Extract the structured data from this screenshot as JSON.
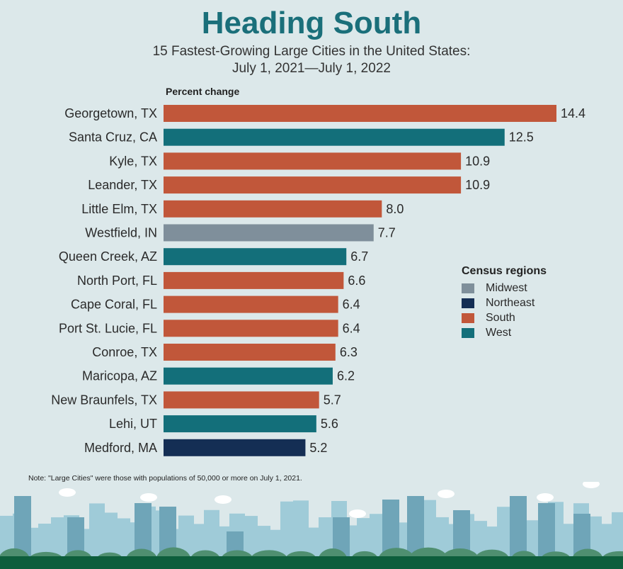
{
  "title": "Heading South",
  "subtitle_line1": "15 Fastest-Growing Large Cities in the United States:",
  "subtitle_line2": "July 1, 2021—July 1, 2022",
  "note": "Note: \"Large Cities\" were those with populations of 50,000 or more on July 1, 2021.",
  "colors": {
    "Midwest": "#7f8f9b",
    "Northeast": "#142e54",
    "South": "#c1573a",
    "West": "#136f7a"
  },
  "legend": {
    "title": "Census regions",
    "items": [
      "Midwest",
      "Northeast",
      "South",
      "West"
    ]
  },
  "chart_data": {
    "type": "bar",
    "orientation": "horizontal",
    "xlabel": "Percent change",
    "categories": [
      "Georgetown, TX",
      "Santa Cruz, CA",
      "Kyle, TX",
      "Leander, TX",
      "Little Elm, TX",
      "Westfield, IN",
      "Queen Creek, AZ",
      "North Port, FL",
      "Cape Coral, FL",
      "Port St. Lucie, FL",
      "Conroe, TX",
      "Maricopa, AZ",
      "New Braunfels, TX",
      "Lehi, UT",
      "Medford, MA"
    ],
    "values": [
      14.4,
      12.5,
      10.9,
      10.9,
      8.0,
      7.7,
      6.7,
      6.6,
      6.4,
      6.4,
      6.3,
      6.2,
      5.7,
      5.6,
      5.2
    ],
    "labels": [
      "14.4",
      "12.5",
      "10.9",
      "10.9",
      "8.0",
      "7.7",
      "6.7",
      "6.6",
      "6.4",
      "6.4",
      "6.3",
      "6.2",
      "5.7",
      "5.6",
      "5.2"
    ],
    "regions": [
      "South",
      "West",
      "South",
      "South",
      "South",
      "Midwest",
      "West",
      "South",
      "South",
      "South",
      "South",
      "West",
      "South",
      "West",
      "Northeast"
    ],
    "grid": false,
    "legend_position": "right"
  }
}
